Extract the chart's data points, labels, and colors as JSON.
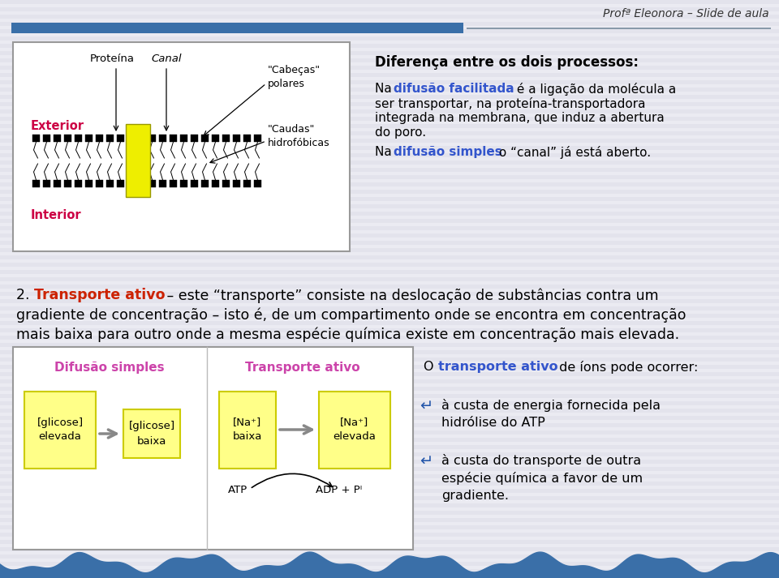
{
  "bg_color": "#ebebf2",
  "header_bar_color": "#3a6fa8",
  "header_text": "Profª Eleonora – Slide de aula",
  "footer_wave_color": "#3a6fa8",
  "exterior_color": "#cc0044",
  "interior_color": "#cc0044",
  "difusao_facilitada_color": "#3355cc",
  "difusao_simples_color": "#3355cc",
  "transporte_ativo_color": "#cc2200",
  "pink_title_color": "#cc44aa",
  "blue_bullet_color": "#2255aa",
  "transporte_ativo_right_color": "#3355cc",
  "yellow_fill": "#ffff88",
  "yellow_edge": "#cccc00",
  "box_edge": "#999999",
  "white_fill": "#ffffff",
  "right_title": "Diferença entre os dois processos:",
  "p1_colored": "difusão facilitada",
  "p2_colored": "difusão simples",
  "p2_rest": " o “canal” já está aberto.",
  "section2_colored": "Transporte ativo",
  "section2_rest": " – este “transporte” consiste na deslocação de substâncias contra um",
  "section2_line2": "gradiente de concentração – isto é, de um compartimento onde se encontra em concentração",
  "section2_line3": "mais baixa para outro onde a mesma espécie química existe em concentração mais elevada.",
  "difusao_title": "Difusão simples",
  "transporte_title": "Transporte ativo",
  "glicose_elevada": "[glicose]\nelevada",
  "glicose_baixa": "[glicose]\nbaixa",
  "na_baixa": "[Na⁺]\nbaixa",
  "na_elevada": "[Na⁺]\nelevada",
  "atp_label": "ATP",
  "adp_label": "ADP + Pᴵ",
  "right_section_colored": "transporte ativo",
  "right_section_rest": " de íons pode ocorrer:",
  "bullet1_line1": "à custa de energia fornecida pela",
  "bullet1_line2": "hidrólise do ATP",
  "bullet2_line1": "à custa do transporte de outra",
  "bullet2_line2": "espécie química a favor de um",
  "bullet2_line3": "gradiente.",
  "proteina_label": "Proteína",
  "canal_label": "Canal",
  "cabecas_label": "\"Cabeças\"\npolares",
  "caudas_label": "\"Caudas\"\nhidrofóbicas",
  "exterior_label": "Exterior",
  "interior_label": "Interior",
  "p1_line1_rest": " é a ligação da molécula a",
  "p1_line2": "ser transportar, na proteína-transportadora",
  "p1_line3": "integrada na membrana, que induz a abertura",
  "p1_line4": "do poro."
}
